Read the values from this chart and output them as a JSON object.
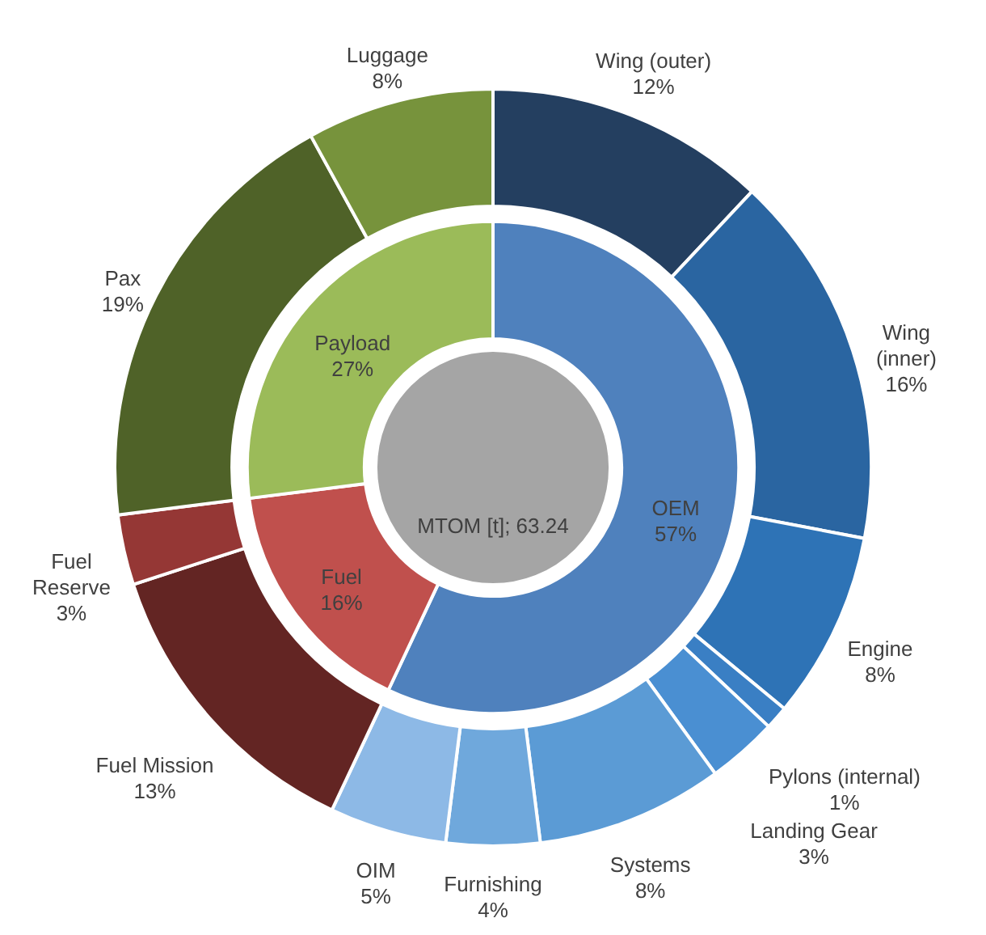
{
  "chart_data": [
    {
      "type": "pie",
      "categories": [
        "MTOM [t]"
      ],
      "values": [
        63.24
      ],
      "value_labels": [
        "63.24"
      ],
      "colors": [
        "#a5a5a5"
      ]
    },
    {
      "type": "donut",
      "categories": [
        "OEM",
        "Fuel",
        "Payload"
      ],
      "values": [
        57,
        16,
        27
      ],
      "value_labels": [
        "57%",
        "16%",
        "27%"
      ],
      "colors": [
        "#4f81bd",
        "#c0504d",
        "#9bbb59"
      ]
    },
    {
      "type": "donut",
      "categories": [
        "Wing (outer)",
        "Wing (inner)",
        "Engine",
        "Pylons (internal)",
        "Landing Gear",
        "Systems",
        "Furnishing",
        "OIM",
        "Fuel Mission",
        "Fuel Reserve",
        "Pax",
        "Luggage"
      ],
      "values": [
        12,
        16,
        8,
        1,
        3,
        8,
        4,
        5,
        13,
        3,
        19,
        8
      ],
      "value_labels": [
        "12%",
        "16%",
        "8%",
        "1%",
        "3%",
        "8%",
        "4%",
        "5%",
        "13%",
        "3%",
        "19%",
        "8%"
      ],
      "colors": [
        "#243f60",
        "#2a65a1",
        "#2e73b6",
        "#3a7fc4",
        "#4a8fd2",
        "#5b9bd5",
        "#6fa8dc",
        "#8db9e6",
        "#632523",
        "#953735",
        "#4f6228",
        "#77933c"
      ]
    }
  ]
}
